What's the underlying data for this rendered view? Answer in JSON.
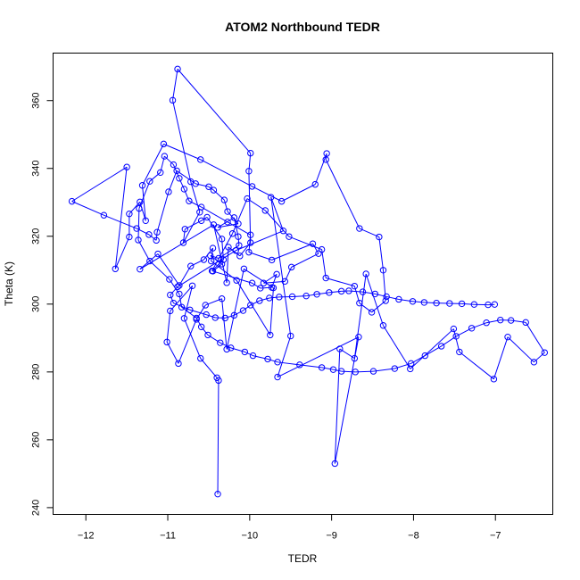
{
  "chart_data": {
    "type": "line",
    "title": "ATOM2 Northbound TEDR",
    "xlabel": "TEDR",
    "ylabel": "Theta (K)",
    "xlim": [
      -12.4,
      -6.3
    ],
    "ylim": [
      238,
      374
    ],
    "xticks": [
      -12,
      -11,
      -10,
      -9,
      -8,
      -7
    ],
    "yticks": [
      240,
      260,
      280,
      300,
      320,
      340,
      360
    ],
    "series_color": "#0000ff",
    "marker": "open-circle",
    "grid": false,
    "series": [
      {
        "x": [
          -10.39,
          -10.38,
          -10.4,
          -10.6,
          -10.8,
          -10.7,
          -10.97,
          -11.01,
          -10.87,
          -10.65,
          -10.54,
          -10.34,
          -10.28,
          -10.07,
          -9.71,
          -9.75,
          -10.16,
          -10.47,
          -10.45,
          -10.56,
          -10.72,
          -10.86,
          -11.12,
          -11.34,
          -10.44,
          -10.28,
          -10.26,
          -10.12,
          -9.99,
          -10.01,
          -9.99,
          -10.88,
          -10.94,
          -10.72,
          -10.61,
          -10.81,
          -10.79,
          -10.59,
          -10.52,
          -10.34,
          -10.32,
          -10.46,
          -10.21,
          -10.03,
          -9.81,
          -9.52,
          -9.12,
          -9.07,
          -8.72,
          -8.66,
          -8.51,
          -8.34,
          -8.37,
          -8.42,
          -8.66,
          -9.07,
          -9.06,
          -9.2,
          -9.61,
          -9.97,
          -10.6,
          -11.05,
          -11.31,
          -11.27,
          -11.34,
          -11.47,
          -11.47,
          -11.64,
          -11.5,
          -12.17,
          -11.78,
          -11.38,
          -11.23,
          -11.14,
          -11.13,
          -10.99,
          -10.89,
          -10.66,
          -10.5,
          -10.44,
          -10.31,
          -10.27,
          -10.14,
          -10.39,
          -10.19,
          -10.14,
          -10.13,
          -10.38,
          -10.48,
          -10.34,
          -10.45,
          -9.97,
          -9.87,
          -9.73,
          -9.67,
          -9.83,
          -9.57,
          -9.49,
          -9.16,
          -9.23,
          -9.73,
          -10.01,
          -9.99,
          -10.27,
          -10.59,
          -10.74,
          -10.8,
          -10.86,
          -10.93,
          -11.04,
          -11.09,
          -11.22,
          -11.35,
          -11.36,
          -11.22,
          -10.98,
          -10.86,
          -10.83,
          -10.65,
          -10.59,
          -10.51,
          -10.36,
          -10.23,
          -10.06,
          -9.96,
          -9.78,
          -9.66,
          -9.39,
          -9.12,
          -8.98,
          -8.88,
          -8.71,
          -8.49,
          -8.23,
          -8.03,
          -7.86,
          -7.66,
          -7.48,
          -7.29,
          -7.11,
          -6.94,
          -6.81,
          -6.63,
          -6.4,
          -6.53,
          -6.85,
          -7.02,
          -7.44,
          -7.51,
          -8.04,
          -8.37,
          -8.58,
          -8.72,
          -8.9,
          -8.96,
          -8.67,
          -9.66,
          -9.5,
          -9.74,
          -9.59,
          -10.17,
          -10.88,
          -10.97,
          -10.93,
          -10.73,
          -10.53,
          -10.42,
          -10.3,
          -10.19,
          -10.08,
          -9.99,
          -9.88,
          -9.76,
          -9.64,
          -9.48,
          -9.31,
          -9.18,
          -9.03,
          -8.88,
          -8.79,
          -8.62,
          -8.47,
          -8.33,
          -8.18,
          -8.01,
          -7.87,
          -7.72,
          -7.56,
          -7.41,
          -7.26,
          -7.09,
          -7.01
        ],
        "y": [
          244,
          277.5,
          278.3,
          284,
          295.8,
          305.4,
          298,
          288.8,
          282.5,
          295.5,
          299.7,
          301.6,
          286.7,
          310.4,
          304.8,
          290.9,
          307,
          312.7,
          316.5,
          313.1,
          311.2,
          305.5,
          314.8,
          310.3,
          323.4,
          306.3,
          316.8,
          314.2,
          318.1,
          339.2,
          344.5,
          369.3,
          360.1,
          336.1,
          327.1,
          318.1,
          322.1,
          324.6,
          325.6,
          319.2,
          313.1,
          309.8,
          320.8,
          331.1,
          327.6,
          319.9,
          316.1,
          307.7,
          305.3,
          300.3,
          297.6,
          301,
          310,
          319.8,
          322.3,
          342.6,
          344.4,
          335.3,
          330.3,
          334.7,
          342.6,
          347.2,
          335,
          324.6,
          330.1,
          326.6,
          319.8,
          310.4,
          340.4,
          330.3,
          326.2,
          322.3,
          320.5,
          318.8,
          321.2,
          333.1,
          339.3,
          335.5,
          334.6,
          333.6,
          330.7,
          327.3,
          323.7,
          322.6,
          325.5,
          319.9,
          317.3,
          313.5,
          314.3,
          311.8,
          309.7,
          306.2,
          304.7,
          304.9,
          308.8,
          306.2,
          306.7,
          310.9,
          314.9,
          317.8,
          313,
          315.3,
          320.4,
          324.2,
          328.6,
          330.4,
          333.9,
          337.1,
          341.1,
          343.6,
          338.8,
          336.2,
          328.2,
          318.9,
          312.7,
          307.3,
          303,
          299.1,
          295.9,
          293.3,
          290.9,
          288.6,
          287.1,
          285.9,
          284.8,
          283.8,
          282.9,
          282.1,
          281.3,
          280.7,
          280.2,
          280,
          280.2,
          281,
          282.5,
          284.8,
          287.6,
          290.5,
          292.9,
          294.5,
          295.3,
          295.2,
          294.6,
          285.7,
          282.9,
          290.3,
          277.9,
          285.9,
          292.7,
          280.9,
          293.7,
          308.9,
          284,
          286.8,
          253,
          290.3,
          278.5,
          290.6,
          331.5,
          321.6,
          315.8,
          305.1,
          302.7,
          300.3,
          298.3,
          296.9,
          296,
          295.9,
          296.7,
          298.1,
          299.7,
          301,
          301.8,
          302.1,
          302.2,
          302.4,
          302.9,
          303.4,
          303.8,
          303.9,
          303.6,
          303,
          302.2,
          301.4,
          300.8,
          300.5,
          300.3,
          300.2,
          300.1,
          299.9,
          299.8,
          299.9
        ]
      }
    ]
  }
}
